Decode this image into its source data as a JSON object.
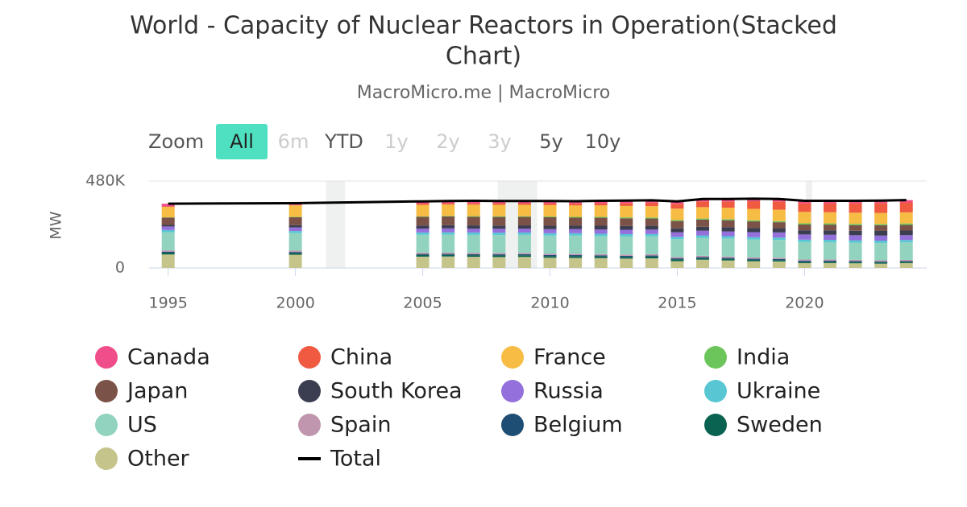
{
  "chart_data": {
    "type": "bar",
    "stacked": true,
    "title": "World - Capacity of Nuclear Reactors in Operation(Stacked",
    "title_line2": "Chart)",
    "subtitle": "MacroMicro.me | MacroMicro",
    "zoom": {
      "label": "Zoom",
      "buttons": [
        "All",
        "6m",
        "YTD",
        "1y",
        "2y",
        "3y",
        "5y",
        "10y"
      ]
    },
    "y_label": "MW",
    "x": [
      1995,
      2000,
      2005,
      2006,
      2007,
      2008,
      2009,
      2010,
      2011,
      2012,
      2013,
      2014,
      2015,
      2016,
      2017,
      2018,
      2019,
      2020,
      2021,
      2022,
      2023,
      2024
    ],
    "xlim": [
      1994.25,
      2024.8
    ],
    "xticks": [
      1995,
      2000,
      2005,
      2010,
      2015,
      2020
    ],
    "ylim": [
      0,
      480000
    ],
    "yticks": [
      0,
      {
        "value": 480000,
        "label": "480K"
      }
    ],
    "grid": true,
    "shaded_x_ranges": [
      [
        2001.2,
        2001.95
      ],
      [
        2007.95,
        2009.5
      ],
      [
        2020.05,
        2020.3
      ]
    ],
    "series": [
      {
        "name": "Canada",
        "color": "#f04e8a",
        "values": [
          14900,
          10000,
          12600,
          12600,
          12600,
          12600,
          12600,
          12600,
          12600,
          13500,
          13500,
          13500,
          13500,
          13500,
          13500,
          13500,
          13500,
          13600,
          13600,
          13600,
          13600,
          12700
        ]
      },
      {
        "name": "China",
        "color": "#ef5a41",
        "values": [
          2100,
          2100,
          6600,
          6600,
          8600,
          8400,
          8400,
          10100,
          11100,
          11900,
          15800,
          19000,
          26800,
          31400,
          34500,
          42900,
          45500,
          47500,
          49600,
          52200,
          54400,
          55000
        ]
      },
      {
        "name": "France",
        "color": "#f6bc44",
        "values": [
          58500,
          63200,
          63400,
          63300,
          63300,
          63300,
          63100,
          63100,
          63100,
          63100,
          63100,
          63100,
          63100,
          63100,
          63100,
          63100,
          63100,
          63100,
          61400,
          61400,
          61400,
          61400
        ]
      },
      {
        "name": "India",
        "color": "#6cc55a",
        "values": [
          1700,
          2500,
          3000,
          3100,
          3800,
          3800,
          3800,
          4200,
          4400,
          5000,
          5300,
          5300,
          5300,
          5700,
          6200,
          6200,
          6200,
          6900,
          6900,
          6900,
          6300,
          7500
        ]
      },
      {
        "name": "Japan",
        "color": "#7a5247",
        "values": [
          39900,
          43500,
          47800,
          48000,
          47600,
          47600,
          46800,
          46800,
          44200,
          44200,
          42400,
          40300,
          40300,
          39800,
          38600,
          37000,
          33100,
          31700,
          31700,
          31700,
          31700,
          31700
        ]
      },
      {
        "name": "South Korea",
        "color": "#3b3d50",
        "values": [
          8600,
          12900,
          16800,
          17500,
          17500,
          17600,
          17700,
          18700,
          18700,
          20700,
          20800,
          20700,
          21700,
          21700,
          23100,
          22400,
          23200,
          23200,
          24500,
          24500,
          25800,
          25600
        ]
      },
      {
        "name": "Russia",
        "color": "#9370db",
        "values": [
          19800,
          19800,
          21700,
          21700,
          21700,
          21700,
          21700,
          22700,
          23100,
          23600,
          24300,
          24700,
          25300,
          26100,
          26100,
          27900,
          28400,
          28600,
          27700,
          27700,
          27700,
          26800
        ]
      },
      {
        "name": "Ukraine",
        "color": "#58c7d3",
        "values": [
          12700,
          11200,
          13100,
          13100,
          13100,
          13100,
          13100,
          13100,
          13100,
          13100,
          13100,
          13100,
          13100,
          13100,
          13100,
          13100,
          13100,
          13100,
          13100,
          13100,
          13100,
          13100
        ]
      },
      {
        "name": "US",
        "color": "#92d3c0",
        "values": [
          99500,
          97100,
          98100,
          98300,
          98800,
          99200,
          99300,
          99400,
          100200,
          99000,
          99500,
          98600,
          98700,
          99300,
          99600,
          99000,
          98100,
          96600,
          95500,
          94700,
          95800,
          96300
        ]
      },
      {
        "name": "Spain",
        "color": "#bf96ae",
        "values": [
          7100,
          7500,
          7600,
          7500,
          7500,
          7500,
          7500,
          7500,
          7500,
          7100,
          7100,
          7100,
          7100,
          7100,
          7100,
          7100,
          7100,
          7100,
          7100,
          7100,
          7100,
          7100
        ]
      },
      {
        "name": "Belgium",
        "color": "#1f4e74",
        "values": [
          5600,
          5700,
          5800,
          5800,
          5800,
          5900,
          5900,
          5900,
          5900,
          5900,
          5900,
          5900,
          5900,
          5900,
          5900,
          5900,
          5900,
          5900,
          5900,
          5400,
          4400,
          3900
        ]
      },
      {
        "name": "Sweden",
        "color": "#0a6350",
        "values": [
          10000,
          9400,
          8900,
          9000,
          8900,
          8900,
          8900,
          9300,
          9400,
          9400,
          9500,
          9500,
          9500,
          8600,
          8600,
          7700,
          7700,
          6900,
          6900,
          6900,
          6900,
          6900
        ]
      },
      {
        "name": "Other",
        "color": "#c4c48b",
        "values": [
          74600,
          73100,
          62600,
          63500,
          61800,
          60400,
          61200,
          56600,
          55700,
          54500,
          51700,
          53200,
          37700,
          45700,
          41600,
          37200,
          36100,
          26800,
          27100,
          25800,
          23800,
          27000
        ]
      },
      {
        "name": "Total",
        "color": "#000000",
        "type": "line",
        "values": [
          355000,
          358000,
          368000,
          370000,
          371000,
          370000,
          370000,
          370000,
          369000,
          371000,
          372000,
          374000,
          368000,
          381000,
          381000,
          383000,
          381000,
          371000,
          371000,
          371000,
          372000,
          375000
        ]
      }
    ]
  }
}
